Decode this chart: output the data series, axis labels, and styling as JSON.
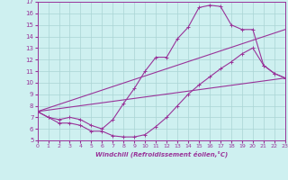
{
  "xlabel": "Windchill (Refroidissement éolien,°C)",
  "xlim": [
    0,
    23
  ],
  "ylim": [
    5,
    17
  ],
  "xticks": [
    0,
    1,
    2,
    3,
    4,
    5,
    6,
    7,
    8,
    9,
    10,
    11,
    12,
    13,
    14,
    15,
    16,
    17,
    18,
    19,
    20,
    21,
    22,
    23
  ],
  "yticks": [
    5,
    6,
    7,
    8,
    9,
    10,
    11,
    12,
    13,
    14,
    15,
    16,
    17
  ],
  "bg_color": "#cef0f0",
  "grid_color": "#aad4d4",
  "line_color": "#993399",
  "line1_x": [
    0,
    1,
    2,
    3,
    4,
    5,
    6,
    7,
    8,
    9,
    10,
    11,
    12,
    13,
    14,
    15,
    16,
    17,
    18,
    19,
    20,
    21,
    22,
    23
  ],
  "line1_y": [
    7.5,
    7.0,
    6.5,
    6.5,
    6.3,
    5.8,
    5.8,
    5.4,
    5.3,
    5.3,
    5.5,
    6.2,
    7.0,
    8.0,
    9.0,
    9.8,
    10.5,
    11.2,
    11.8,
    12.5,
    13.0,
    11.5,
    10.8,
    10.4
  ],
  "line2_x": [
    0,
    1,
    2,
    3,
    4,
    5,
    6,
    7,
    8,
    9,
    10,
    11,
    12,
    13,
    14,
    15,
    16,
    17,
    18,
    19,
    20,
    21,
    22,
    23
  ],
  "line2_y": [
    7.5,
    7.0,
    6.8,
    7.0,
    6.8,
    6.3,
    6.0,
    6.8,
    8.2,
    9.5,
    11.0,
    12.2,
    12.2,
    13.8,
    14.8,
    16.5,
    16.7,
    16.6,
    15.0,
    14.6,
    14.6,
    11.5,
    10.8,
    10.4
  ],
  "line3_x": [
    0,
    23
  ],
  "line3_y": [
    7.5,
    10.4
  ],
  "line4_x": [
    0,
    23
  ],
  "line4_y": [
    7.5,
    14.6
  ]
}
